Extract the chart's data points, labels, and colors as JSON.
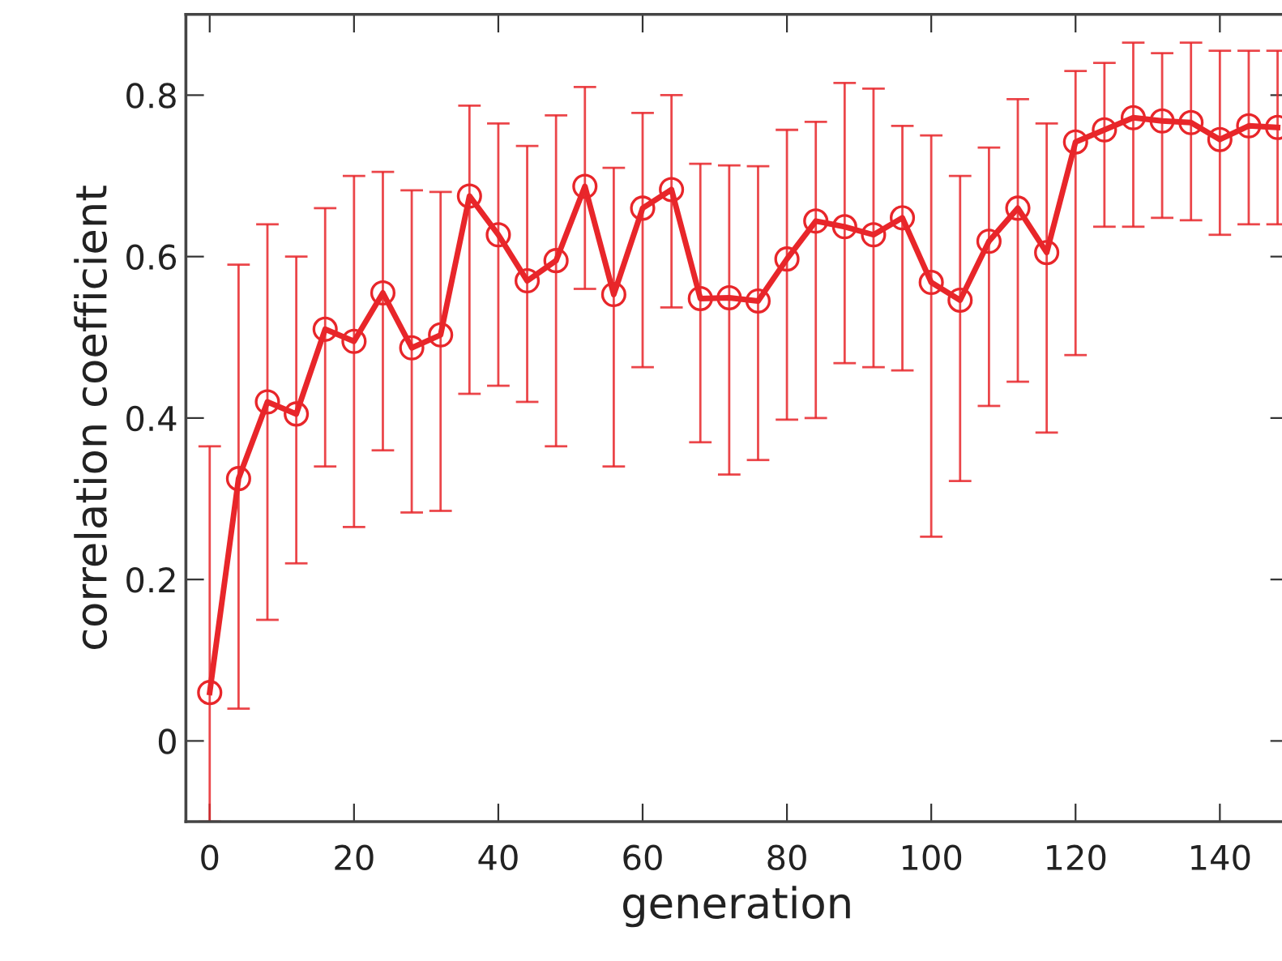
{
  "chart_data": {
    "type": "line",
    "xlabel": "generation",
    "ylabel": "correlation coefficient",
    "x": [
      0,
      4,
      8,
      12,
      16,
      20,
      24,
      28,
      32,
      36,
      40,
      44,
      48,
      52,
      56,
      60,
      64,
      68,
      72,
      76,
      80,
      84,
      88,
      92,
      96,
      100,
      104,
      108,
      112,
      116,
      120,
      124,
      128,
      132,
      136,
      140,
      144,
      148
    ],
    "series": [
      {
        "color": "#e8262a",
        "values": [
          0.06,
          0.325,
          0.42,
          0.405,
          0.51,
          0.495,
          0.555,
          0.487,
          0.503,
          0.675,
          0.627,
          0.57,
          0.595,
          0.687,
          0.553,
          0.66,
          0.683,
          0.548,
          0.549,
          0.545,
          0.597,
          0.644,
          0.637,
          0.627,
          0.648,
          0.568,
          0.546,
          0.619,
          0.66,
          0.605,
          0.742,
          0.757,
          0.772,
          0.768,
          0.766,
          0.745,
          0.762,
          0.76
        ],
        "errors": [
          [
            -0.1,
            0.365
          ],
          [
            0.04,
            0.59
          ],
          [
            0.15,
            0.64
          ],
          [
            0.22,
            0.6
          ],
          [
            0.34,
            0.66
          ],
          [
            0.265,
            0.7
          ],
          [
            0.36,
            0.705
          ],
          [
            0.283,
            0.682
          ],
          [
            0.285,
            0.68
          ],
          [
            0.43,
            0.787
          ],
          [
            0.44,
            0.765
          ],
          [
            0.42,
            0.737
          ],
          [
            0.365,
            0.775
          ],
          [
            0.56,
            0.81
          ],
          [
            0.34,
            0.71
          ],
          [
            0.463,
            0.778
          ],
          [
            0.537,
            0.8
          ],
          [
            0.37,
            0.715
          ],
          [
            0.33,
            0.713
          ],
          [
            0.348,
            0.712
          ],
          [
            0.398,
            0.757
          ],
          [
            0.4,
            0.767
          ],
          [
            0.468,
            0.815
          ],
          [
            0.463,
            0.808
          ],
          [
            0.459,
            0.762
          ],
          [
            0.253,
            0.75
          ],
          [
            0.322,
            0.7
          ],
          [
            0.415,
            0.735
          ],
          [
            0.445,
            0.795
          ],
          [
            0.382,
            0.765
          ],
          [
            0.478,
            0.83
          ],
          [
            0.637,
            0.84
          ],
          [
            0.637,
            0.865
          ],
          [
            0.648,
            0.852
          ],
          [
            0.645,
            0.865
          ],
          [
            0.627,
            0.855
          ],
          [
            0.64,
            0.855
          ],
          [
            0.64,
            0.855
          ]
        ]
      }
    ],
    "marker": "circle",
    "line_style": "solid",
    "grid": false,
    "legend": false,
    "xlim": [
      -3.3,
      149.5
    ],
    "ylim": [
      -0.1,
      0.9
    ],
    "xticks": [
      0,
      20,
      40,
      60,
      80,
      100,
      120,
      140
    ],
    "yticks": [
      0,
      0.2,
      0.4,
      0.6,
      0.8
    ]
  }
}
